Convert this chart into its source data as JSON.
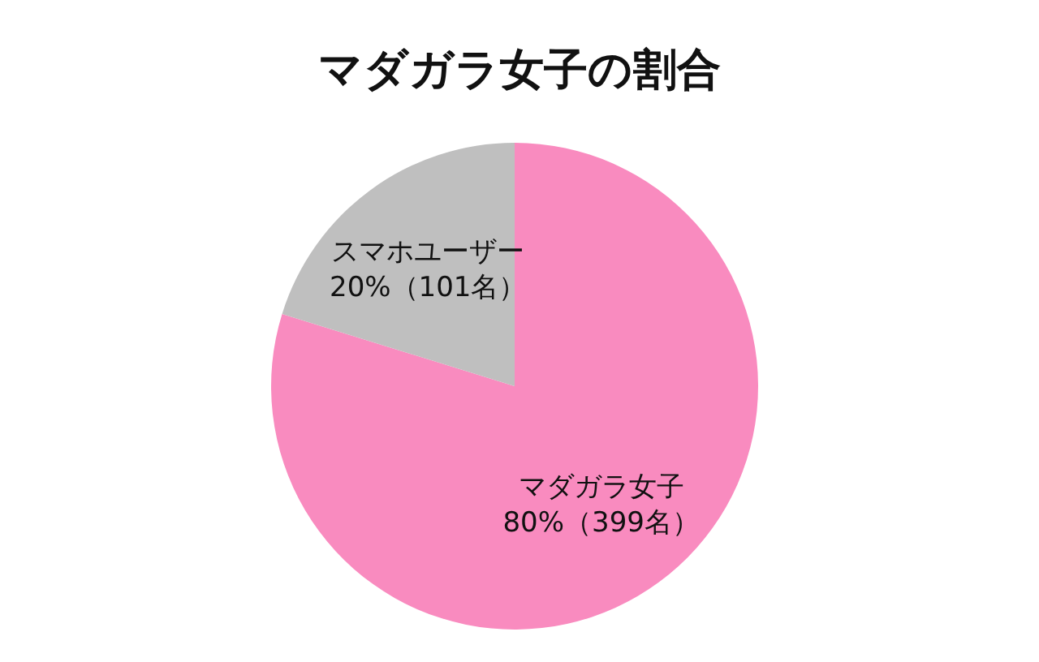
{
  "chart_data": {
    "type": "pie",
    "title": "マダガラ女子の割合",
    "categories": [
      "マダガラ女子",
      "スマホユーザー"
    ],
    "values": [
      399,
      101
    ],
    "value_labels": [
      "80%（399名）",
      "20%（101名）"
    ],
    "colors": [
      "#f98bbf",
      "#bfbfbf"
    ]
  }
}
